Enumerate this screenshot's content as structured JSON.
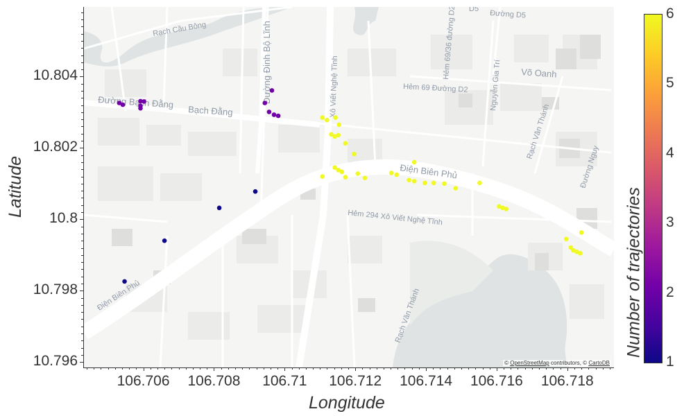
{
  "map": {
    "title": "",
    "lon_range": [
      106.7043,
      106.7193
    ],
    "lat_range": [
      10.79585,
      10.80595
    ],
    "attribution_prefix": "© ",
    "attribution_osm": "OpenStreetMap",
    "attribution_mid": " contributors, © ",
    "attribution_carto": "CartoDB",
    "road_labels": [
      "Rạch Cầu Bông",
      "Đường Bạch Đằng",
      "Bạch Đằng",
      "Đường Đinh Bộ Lĩnh",
      "Xô Viết Nghệ Tĩnh",
      "Hẻm 69/36 đường D2",
      "Hẻm 69 Đường D2",
      "Nguyễn Gia Trí",
      "Võ Oanh",
      "Rạch Văn Thánh",
      "Điện Biên Phủ",
      "Hẻm 294 Xô Viết Nghệ Tĩnh",
      "Điện Biên Phủ",
      "Đường Nguy",
      "Rạch Văn Thánh",
      "Đường D5",
      "D5"
    ]
  },
  "axes": {
    "xlabel": "Longitude",
    "ylabel": "Latitude",
    "x_ticks": [
      "106.706",
      "106.708",
      "106.71",
      "106.712",
      "106.714",
      "106.716",
      "106.718"
    ],
    "y_ticks": [
      "10.796",
      "10.798",
      "10.8",
      "10.802",
      "10.804"
    ]
  },
  "colorbar": {
    "title": "Number of trajectories",
    "range": [
      1,
      6
    ],
    "ticks": [
      "1",
      "2",
      "3",
      "4",
      "5",
      "6"
    ],
    "colors": [
      "#0d0887",
      "#46039f",
      "#7201a8",
      "#9c179e",
      "#bd3786",
      "#d8576b",
      "#ed7953",
      "#fb9f3a",
      "#fdca26",
      "#f0f921"
    ]
  },
  "chart_data": {
    "type": "scatter",
    "title": "",
    "xlabel": "Longitude",
    "ylabel": "Latitude",
    "xlim": [
      106.7043,
      106.7193
    ],
    "ylim": [
      10.79585,
      10.80595
    ],
    "color_label": "Number of trajectories",
    "points": [
      {
        "lon": 106.7053,
        "lat": 10.80326,
        "count": 2
      },
      {
        "lon": 106.7054,
        "lat": 10.80321,
        "count": 2
      },
      {
        "lon": 106.7059,
        "lat": 10.80331,
        "count": 2
      },
      {
        "lon": 106.706,
        "lat": 10.8033,
        "count": 2
      },
      {
        "lon": 106.7059,
        "lat": 10.80318,
        "count": 2
      },
      {
        "lon": 106.7059,
        "lat": 10.80311,
        "count": 2
      },
      {
        "lon": 106.70942,
        "lat": 10.80326,
        "count": 2
      },
      {
        "lon": 106.70962,
        "lat": 10.80361,
        "count": 2
      },
      {
        "lon": 106.70954,
        "lat": 10.80301,
        "count": 2
      },
      {
        "lon": 106.70968,
        "lat": 10.80293,
        "count": 2
      },
      {
        "lon": 106.7098,
        "lat": 10.8029,
        "count": 2
      },
      {
        "lon": 106.70915,
        "lat": 10.80078,
        "count": 1
      },
      {
        "lon": 106.70813,
        "lat": 10.80032,
        "count": 1
      },
      {
        "lon": 106.70658,
        "lat": 10.7994,
        "count": 1
      },
      {
        "lon": 106.70545,
        "lat": 10.79826,
        "count": 1
      },
      {
        "lon": 106.71105,
        "lat": 10.80285,
        "count": 6
      },
      {
        "lon": 106.71118,
        "lat": 10.80278,
        "count": 6
      },
      {
        "lon": 106.71142,
        "lat": 10.80285,
        "count": 6
      },
      {
        "lon": 106.71152,
        "lat": 10.80265,
        "count": 6
      },
      {
        "lon": 106.7113,
        "lat": 10.80238,
        "count": 6
      },
      {
        "lon": 106.7114,
        "lat": 10.80232,
        "count": 6
      },
      {
        "lon": 106.7115,
        "lat": 10.80236,
        "count": 6
      },
      {
        "lon": 106.7117,
        "lat": 10.80213,
        "count": 6
      },
      {
        "lon": 106.71195,
        "lat": 10.80183,
        "count": 6
      },
      {
        "lon": 106.7114,
        "lat": 10.80145,
        "count": 6
      },
      {
        "lon": 106.7115,
        "lat": 10.80138,
        "count": 6
      },
      {
        "lon": 106.7116,
        "lat": 10.80133,
        "count": 6
      },
      {
        "lon": 106.71105,
        "lat": 10.8012,
        "count": 6
      },
      {
        "lon": 106.7117,
        "lat": 10.80118,
        "count": 6
      },
      {
        "lon": 106.71205,
        "lat": 10.80128,
        "count": 6
      },
      {
        "lon": 106.71225,
        "lat": 10.80116,
        "count": 6
      },
      {
        "lon": 106.713,
        "lat": 10.8013,
        "count": 6
      },
      {
        "lon": 106.71315,
        "lat": 10.80125,
        "count": 6
      },
      {
        "lon": 106.71365,
        "lat": 10.8016,
        "count": 6
      },
      {
        "lon": 106.7135,
        "lat": 10.8011,
        "count": 6
      },
      {
        "lon": 106.71365,
        "lat": 10.80107,
        "count": 6
      },
      {
        "lon": 106.71395,
        "lat": 10.80102,
        "count": 6
      },
      {
        "lon": 106.7142,
        "lat": 10.80102,
        "count": 6
      },
      {
        "lon": 106.7145,
        "lat": 10.801,
        "count": 6
      },
      {
        "lon": 106.71482,
        "lat": 10.80087,
        "count": 6
      },
      {
        "lon": 106.7155,
        "lat": 10.80102,
        "count": 6
      },
      {
        "lon": 106.71605,
        "lat": 10.80036,
        "count": 6
      },
      {
        "lon": 106.71615,
        "lat": 10.80032,
        "count": 6
      },
      {
        "lon": 106.71625,
        "lat": 10.80029,
        "count": 6
      },
      {
        "lon": 106.71795,
        "lat": 10.79945,
        "count": 6
      },
      {
        "lon": 106.71808,
        "lat": 10.79921,
        "count": 6
      },
      {
        "lon": 106.71815,
        "lat": 10.79913,
        "count": 6
      },
      {
        "lon": 106.71825,
        "lat": 10.79909,
        "count": 6
      },
      {
        "lon": 106.71835,
        "lat": 10.79905,
        "count": 6
      },
      {
        "lon": 106.71838,
        "lat": 10.79963,
        "count": 6
      }
    ]
  }
}
